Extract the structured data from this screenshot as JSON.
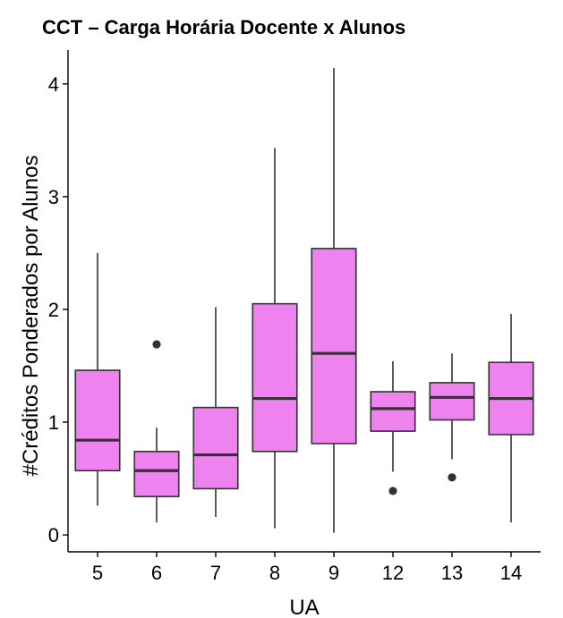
{
  "chart_data": {
    "type": "box",
    "title": "CCT  – Carga Horária Docente x Alunos",
    "xlabel": "UA",
    "ylabel": "#Créditos Ponderados por Alunos",
    "ylim": [
      -0.15,
      4.3
    ],
    "yticks": [
      0,
      1,
      2,
      3,
      4
    ],
    "categories": [
      "5",
      "6",
      "7",
      "8",
      "9",
      "12",
      "13",
      "14"
    ],
    "boxes": [
      {
        "category": "5",
        "min": 0.26,
        "q1": 0.57,
        "median": 0.84,
        "q3": 1.46,
        "max": 2.5,
        "outliers": []
      },
      {
        "category": "6",
        "min": 0.11,
        "q1": 0.34,
        "median": 0.57,
        "q3": 0.74,
        "max": 0.95,
        "outliers": [
          1.69
        ]
      },
      {
        "category": "7",
        "min": 0.16,
        "q1": 0.41,
        "median": 0.71,
        "q3": 1.13,
        "max": 2.02,
        "outliers": []
      },
      {
        "category": "8",
        "min": 0.06,
        "q1": 0.74,
        "median": 1.21,
        "q3": 2.05,
        "max": 3.43,
        "outliers": []
      },
      {
        "category": "9",
        "min": 0.02,
        "q1": 0.81,
        "median": 1.61,
        "q3": 2.54,
        "max": 4.14,
        "outliers": []
      },
      {
        "category": "12",
        "min": 0.56,
        "q1": 0.92,
        "median": 1.12,
        "q3": 1.27,
        "max": 1.54,
        "outliers": [
          0.39
        ]
      },
      {
        "category": "13",
        "min": 0.67,
        "q1": 1.02,
        "median": 1.22,
        "q3": 1.35,
        "max": 1.61,
        "outliers": [
          0.51
        ]
      },
      {
        "category": "14",
        "min": 0.11,
        "q1": 0.89,
        "median": 1.21,
        "q3": 1.53,
        "max": 1.96,
        "outliers": []
      }
    ],
    "grid": false,
    "legend": "none",
    "colors": {
      "box_fill": "#EE82EE",
      "stroke": "#333333",
      "axis": "#000000",
      "background": "#FFFFFF"
    }
  }
}
